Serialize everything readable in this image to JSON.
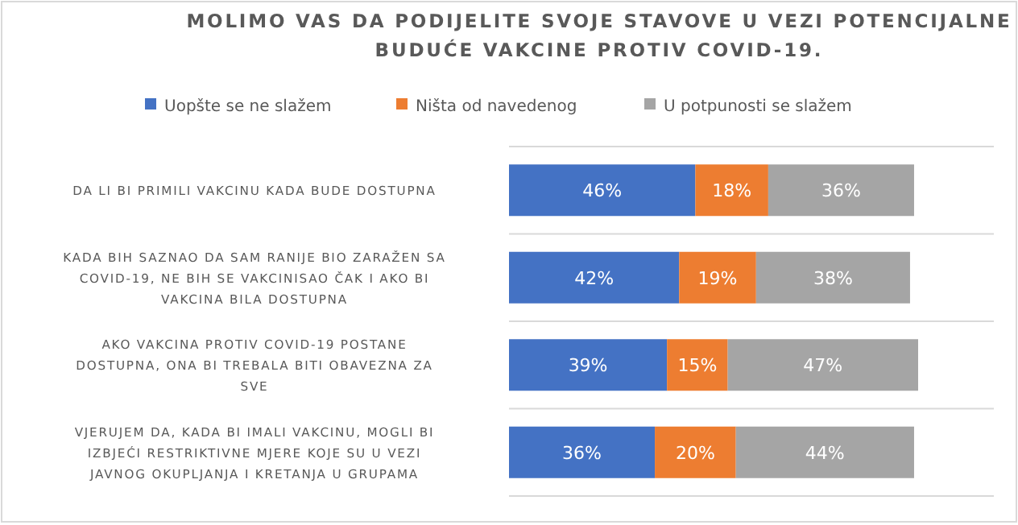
{
  "chart_data": {
    "type": "bar",
    "orientation": "horizontal",
    "stacked": true,
    "title": "MOLIMO VAS DA PODIJELITE SVOJE STAVOVE U VEZI POTENCIJALNE BUDUĆE VAKCINE PROTIV COVID-19.",
    "categories": [
      "DA LI BI PRIMILI VAKCINU KADA BUDE DOSTUPNA",
      "KADA BIH SAZNAO DA SAM RANIJE BIO ZARAŽEN SA COVID-19, NE BIH SE VAKCINISAO ČAK I AKO BI VAKCINA BILA DOSTUPNA",
      "AKO VAKCINA PROTIV COVID-19 POSTANE DOSTUPNA, ONA BI TREBALA BITI OBAVEZNA ZA SVE",
      "VJERUJEM DA, KADA BI IMALI VAKCINU, MOGLI BI IZBJEĆI RESTRIKTIVNE MJERE KOJE SU U VEZI JAVNOG OKUPLJANJA I KRETANJA U GRUPAMA"
    ],
    "series": [
      {
        "name": "Uopšte se ne slažem",
        "color": "#4472c4",
        "values": [
          46,
          42,
          39,
          36
        ],
        "value_labels": [
          "46%",
          "42%",
          "39%",
          "36%"
        ]
      },
      {
        "name": "Ništa od navedenog",
        "color": "#ed7d31",
        "values": [
          18,
          19,
          15,
          20
        ],
        "value_labels": [
          "18%",
          "19%",
          "15%",
          "20%"
        ]
      },
      {
        "name": "U potpunosti se slažem",
        "color": "#a5a5a5",
        "values": [
          36,
          38,
          47,
          44
        ],
        "value_labels": [
          "36%",
          "38%",
          "47%",
          "44%"
        ]
      }
    ],
    "legend": "top",
    "grid": "y"
  }
}
